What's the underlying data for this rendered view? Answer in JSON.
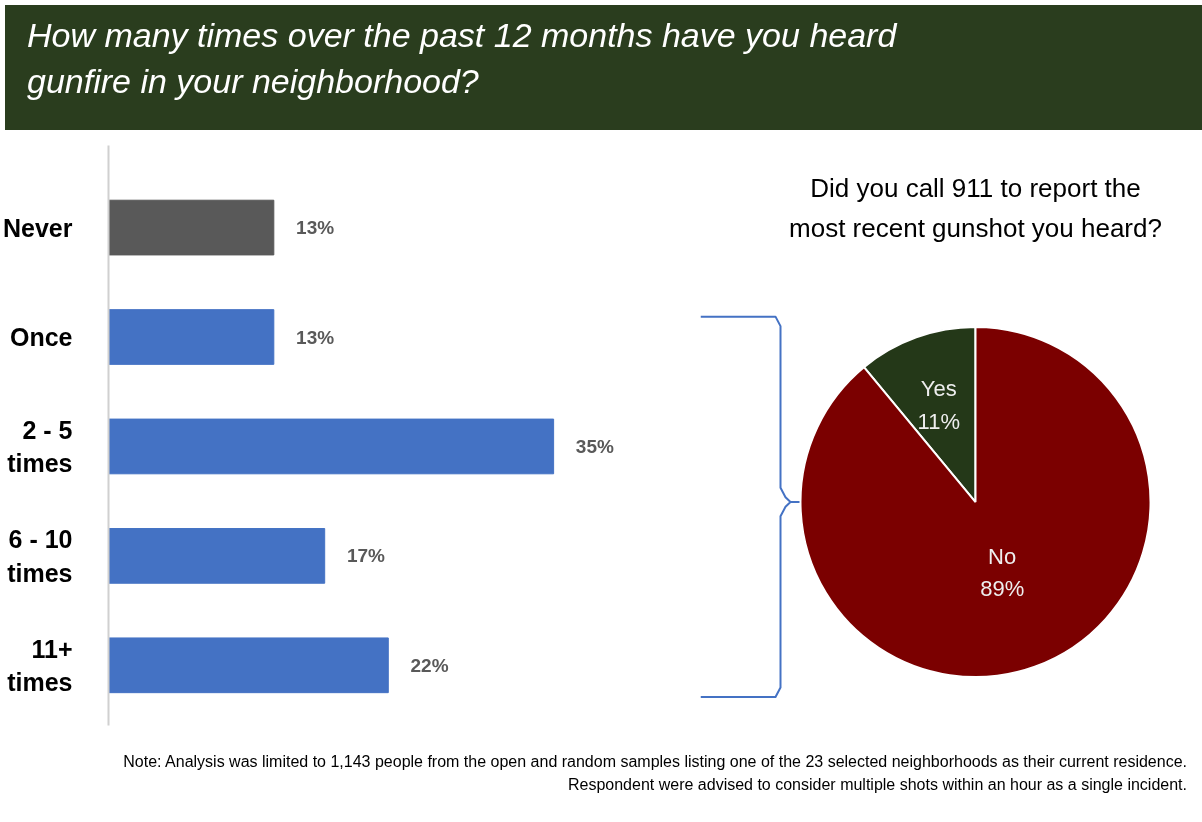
{
  "chart_data": [
    {
      "type": "bar",
      "orientation": "horizontal",
      "title": "How many times over the past 12 months have you heard gunfire in your neighborhood?",
      "categories": [
        "Never",
        "Once",
        "2 - 5 times",
        "6 - 10 times",
        "11+ times"
      ],
      "values": [
        13,
        13,
        35,
        17,
        22
      ],
      "value_labels": [
        "13%",
        "13%",
        "35%",
        "17%",
        "22%"
      ],
      "colors": [
        "#595959",
        "#4472c4",
        "#4472c4",
        "#4472c4",
        "#4472c4"
      ],
      "annotations": [
        "Note: Analysis was limited to 1,143 people from the open and random samples listing one of the 23 selected neighborhoods as their current residence. Respondent were advised to consider multiple shots within an hour as a single incident."
      ]
    },
    {
      "type": "pie",
      "title": "Did you call 911 to report the most recent gunshot you heard?",
      "categories": [
        "Yes",
        "No"
      ],
      "values": [
        11,
        89
      ],
      "value_labels": [
        "11%",
        "89%"
      ],
      "colors": [
        "#243818",
        "#7b0000"
      ]
    }
  ]
}
